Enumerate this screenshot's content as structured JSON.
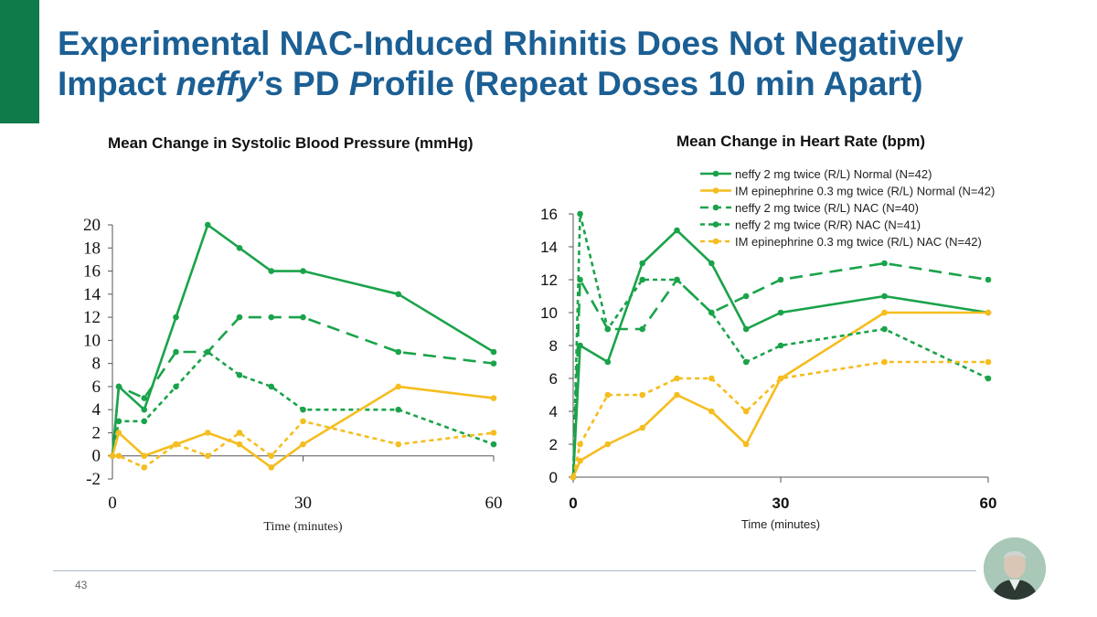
{
  "slide": {
    "title_part1": "Experimental NAC-Induced Rhinitis Does Not Negatively",
    "title_part2": "Impact ",
    "title_italic1": "neffy",
    "title_part3": "’s PD ",
    "title_italic2": "P",
    "title_part4": "rofile (Repeat Doses 10 min Apart)",
    "page_number": "43"
  },
  "colors": {
    "green": "#1aa34a",
    "yellow": "#f5bd1f",
    "title": "#1b5f94",
    "accent": "#0f7a4a"
  },
  "chart_data": [
    {
      "type": "line",
      "title": "Mean Change in Systolic Blood Pressure (mmHg)",
      "xlabel": "Time (minutes)",
      "ylabel": "",
      "xlim": [
        0,
        60
      ],
      "ylim": [
        -2,
        20
      ],
      "xticks": [
        0,
        30,
        60
      ],
      "yticks": [
        -2,
        0,
        2,
        4,
        6,
        8,
        10,
        12,
        14,
        16,
        18,
        20
      ],
      "series": [
        {
          "name": "neffy 2 mg twice (R/L) Normal",
          "color": "#1aa34a",
          "dash": "solid",
          "x": [
            0,
            1,
            5,
            10,
            15,
            20,
            25,
            30,
            45,
            60
          ],
          "values": [
            0,
            6,
            4,
            12,
            20,
            18,
            16,
            16,
            14,
            9
          ]
        },
        {
          "name": "neffy 2 mg twice (R/L) NAC",
          "color": "#1aa34a",
          "dash": "long",
          "x": [
            0,
            1,
            5,
            10,
            15,
            20,
            25,
            30,
            45,
            60
          ],
          "values": [
            0,
            6,
            5,
            9,
            9,
            12,
            12,
            12,
            9,
            8
          ]
        },
        {
          "name": "neffy 2 mg twice (R/R) NAC",
          "color": "#1aa34a",
          "dash": "short",
          "x": [
            0,
            1,
            5,
            10,
            15,
            20,
            25,
            30,
            45,
            60
          ],
          "values": [
            0,
            3,
            3,
            6,
            9,
            7,
            6,
            4,
            4,
            1
          ]
        },
        {
          "name": "IM epinephrine 0.3 mg twice (R/L) Normal",
          "color": "#f5bd1f",
          "dash": "solid",
          "x": [
            0,
            1,
            5,
            10,
            15,
            20,
            25,
            30,
            45,
            60
          ],
          "values": [
            0,
            2,
            0,
            1,
            2,
            1,
            -1,
            1,
            6,
            5
          ]
        },
        {
          "name": "IM epinephrine 0.3 mg twice (R/L) NAC",
          "color": "#f5bd1f",
          "dash": "short",
          "x": [
            0,
            1,
            5,
            10,
            15,
            20,
            25,
            30,
            45,
            60
          ],
          "values": [
            0,
            0,
            -1,
            1,
            0,
            2,
            0,
            3,
            1,
            2
          ]
        }
      ]
    },
    {
      "type": "line",
      "title": "Mean Change in Heart Rate (bpm)",
      "xlabel": "Time (minutes)",
      "ylabel": "",
      "xlim": [
        0,
        60
      ],
      "ylim": [
        0,
        16
      ],
      "xticks": [
        0,
        30,
        60
      ],
      "yticks": [
        0,
        2,
        4,
        6,
        8,
        10,
        12,
        14,
        16
      ],
      "legend_position": "top",
      "series": [
        {
          "name": "neffy 2 mg twice (R/L) Normal (N=42)",
          "color": "#1aa34a",
          "dash": "solid",
          "x": [
            0,
            1,
            5,
            10,
            15,
            20,
            25,
            30,
            45,
            60
          ],
          "values": [
            0,
            8,
            7,
            13,
            15,
            13,
            9,
            10,
            11,
            10
          ]
        },
        {
          "name": "IM epinephrine 0.3 mg twice (R/L) Normal (N=42)",
          "color": "#f5bd1f",
          "dash": "solid",
          "x": [
            0,
            1,
            5,
            10,
            15,
            20,
            25,
            30,
            45,
            60
          ],
          "values": [
            0,
            1,
            2,
            3,
            5,
            4,
            2,
            6,
            10,
            10
          ]
        },
        {
          "name": "neffy 2 mg twice (R/L) NAC (N=40)",
          "color": "#1aa34a",
          "dash": "long",
          "x": [
            0,
            1,
            5,
            10,
            15,
            20,
            25,
            30,
            45,
            60
          ],
          "values": [
            0,
            12,
            9,
            9,
            12,
            10,
            11,
            12,
            13,
            12
          ]
        },
        {
          "name": "neffy 2 mg twice (R/R) NAC (N=41)",
          "color": "#1aa34a",
          "dash": "short",
          "x": [
            0,
            1,
            5,
            10,
            15,
            20,
            25,
            30,
            45,
            60
          ],
          "values": [
            0,
            16,
            9,
            12,
            12,
            10,
            7,
            8,
            9,
            6
          ]
        },
        {
          "name": "IM epinephrine 0.3 mg twice (R/L) NAC (N=42)",
          "color": "#f5bd1f",
          "dash": "short",
          "x": [
            0,
            1,
            5,
            10,
            15,
            20,
            25,
            30,
            45,
            60
          ],
          "values": [
            0,
            2,
            5,
            5,
            6,
            6,
            4,
            6,
            7,
            7
          ]
        }
      ]
    }
  ]
}
